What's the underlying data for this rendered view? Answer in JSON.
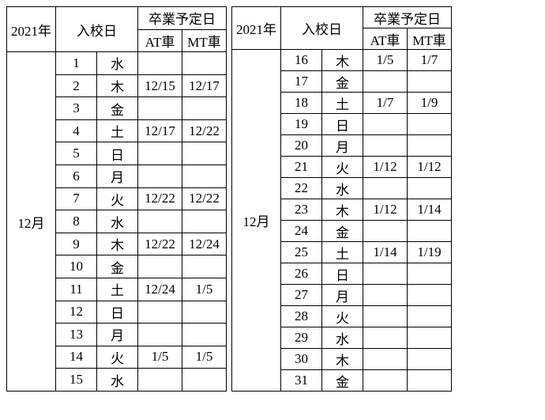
{
  "header": {
    "year": "2021年",
    "entry": "入校日",
    "grad": "卒業予定日",
    "at": "AT車",
    "mt": "MT車"
  },
  "month": "12月",
  "left": {
    "rows": [
      {
        "n": "1",
        "d": "水",
        "at": "",
        "mt": ""
      },
      {
        "n": "2",
        "d": "木",
        "at": "12/15",
        "mt": "12/17"
      },
      {
        "n": "3",
        "d": "金",
        "at": "",
        "mt": ""
      },
      {
        "n": "4",
        "d": "土",
        "at": "12/17",
        "mt": "12/22"
      },
      {
        "n": "5",
        "d": "日",
        "at": "",
        "mt": ""
      },
      {
        "n": "6",
        "d": "月",
        "at": "",
        "mt": ""
      },
      {
        "n": "7",
        "d": "火",
        "at": "12/22",
        "mt": "12/22"
      },
      {
        "n": "8",
        "d": "水",
        "at": "",
        "mt": ""
      },
      {
        "n": "9",
        "d": "木",
        "at": "12/22",
        "mt": "12/24"
      },
      {
        "n": "10",
        "d": "金",
        "at": "",
        "mt": ""
      },
      {
        "n": "11",
        "d": "土",
        "at": "12/24",
        "mt": "1/5"
      },
      {
        "n": "12",
        "d": "日",
        "at": "",
        "mt": ""
      },
      {
        "n": "13",
        "d": "月",
        "at": "",
        "mt": ""
      },
      {
        "n": "14",
        "d": "火",
        "at": "1/5",
        "mt": "1/5"
      },
      {
        "n": "15",
        "d": "水",
        "at": "",
        "mt": ""
      }
    ]
  },
  "right": {
    "rows": [
      {
        "n": "16",
        "d": "木",
        "at": "1/5",
        "mt": "1/7"
      },
      {
        "n": "17",
        "d": "金",
        "at": "",
        "mt": ""
      },
      {
        "n": "18",
        "d": "土",
        "at": "1/7",
        "mt": "1/9"
      },
      {
        "n": "19",
        "d": "日",
        "at": "",
        "mt": ""
      },
      {
        "n": "20",
        "d": "月",
        "at": "",
        "mt": ""
      },
      {
        "n": "21",
        "d": "火",
        "at": "1/12",
        "mt": "1/12"
      },
      {
        "n": "22",
        "d": "水",
        "at": "",
        "mt": ""
      },
      {
        "n": "23",
        "d": "木",
        "at": "1/12",
        "mt": "1/14"
      },
      {
        "n": "24",
        "d": "金",
        "at": "",
        "mt": ""
      },
      {
        "n": "25",
        "d": "土",
        "at": "1/14",
        "mt": "1/19"
      },
      {
        "n": "26",
        "d": "日",
        "at": "",
        "mt": ""
      },
      {
        "n": "27",
        "d": "月",
        "at": "",
        "mt": ""
      },
      {
        "n": "28",
        "d": "火",
        "at": "",
        "mt": ""
      },
      {
        "n": "29",
        "d": "水",
        "at": "",
        "mt": ""
      },
      {
        "n": "30",
        "d": "木",
        "at": "",
        "mt": ""
      },
      {
        "n": "31",
        "d": "金",
        "at": "",
        "mt": ""
      }
    ]
  }
}
